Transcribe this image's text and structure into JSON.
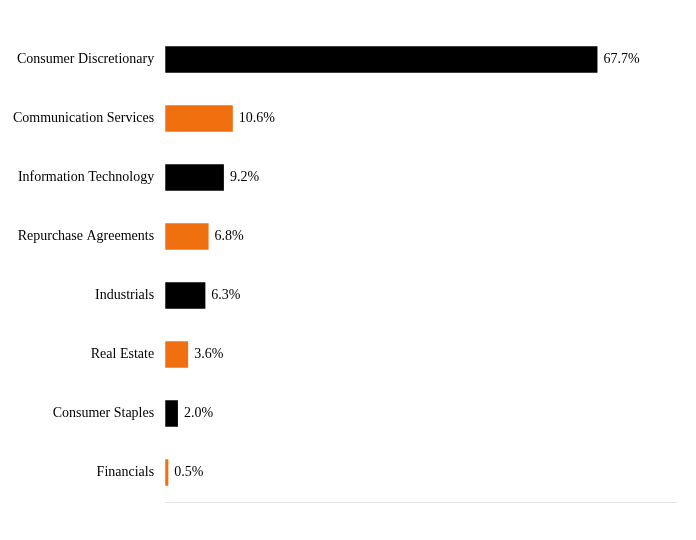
{
  "chart_data": {
    "type": "bar",
    "orientation": "horizontal",
    "categories": [
      "Consumer Discretionary",
      "Communication Services",
      "Information Technology",
      "Repurchase Agreements",
      "Industrials",
      "Real Estate",
      "Consumer Staples",
      "Financials"
    ],
    "values": [
      67.7,
      10.6,
      9.2,
      6.8,
      6.3,
      3.6,
      2.0,
      0.5
    ],
    "value_labels": [
      "67.7%",
      "10.6%",
      "9.2%",
      "6.8%",
      "6.3%",
      "3.6%",
      "2.0%",
      "0.5%"
    ],
    "colors": [
      "#000000",
      "#f07010",
      "#000000",
      "#f07010",
      "#000000",
      "#f07010",
      "#000000",
      "#f07010"
    ],
    "xlim": [
      0,
      80
    ],
    "grid": false,
    "tick_labels": "y",
    "data_labels": true
  }
}
